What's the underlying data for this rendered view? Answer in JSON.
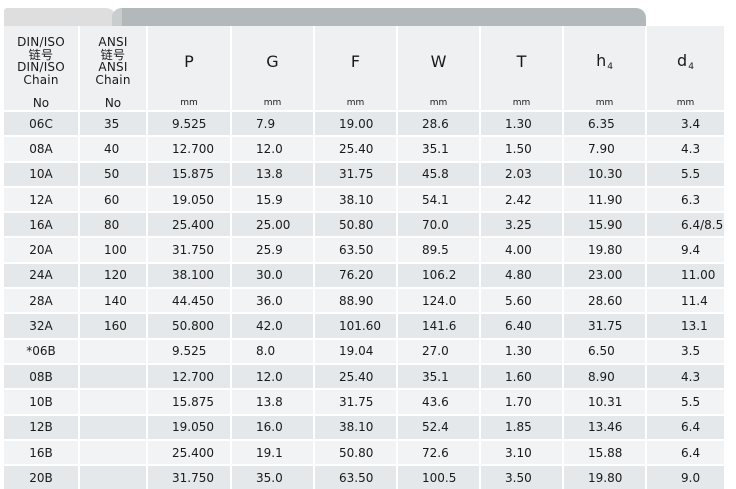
{
  "header": {
    "din_lines": [
      "DIN/ISO",
      "链号",
      "DIN/ISO",
      "Chain",
      "No"
    ],
    "ansi_lines": [
      "ANSI",
      "链号",
      "ANSI",
      "Chain",
      "No"
    ],
    "dims": [
      {
        "sym": "P",
        "sub": ""
      },
      {
        "sym": "G",
        "sub": ""
      },
      {
        "sym": "F",
        "sub": ""
      },
      {
        "sym": "W",
        "sub": ""
      },
      {
        "sym": "T",
        "sub": ""
      },
      {
        "sym": "h",
        "sub": "4"
      },
      {
        "sym": "d",
        "sub": "4"
      }
    ],
    "unit": "mm"
  },
  "rows": [
    [
      "06C",
      "35",
      "9.525",
      "7.9",
      "19.00",
      "28.6",
      "1.30",
      "6.35",
      "3.4"
    ],
    [
      "08A",
      "40",
      "12.700",
      "12.0",
      "25.40",
      "35.1",
      "1.50",
      "7.90",
      "4.3"
    ],
    [
      "10A",
      "50",
      "15.875",
      "13.8",
      "31.75",
      "45.8",
      "2.03",
      "10.30",
      "5.5"
    ],
    [
      "12A",
      "60",
      "19.050",
      "15.9",
      "38.10",
      "54.1",
      "2.42",
      "11.90",
      "6.3"
    ],
    [
      "16A",
      "80",
      "25.400",
      "25.00",
      "50.80",
      "70.0",
      "3.25",
      "15.90",
      "6.4/8.5"
    ],
    [
      "20A",
      "100",
      "31.750",
      "25.9",
      "63.50",
      "89.5",
      "4.00",
      "19.80",
      "9.4"
    ],
    [
      "24A",
      "120",
      "38.100",
      "30.0",
      "76.20",
      "106.2",
      "4.80",
      "23.00",
      "11.00"
    ],
    [
      "28A",
      "140",
      "44.450",
      "36.0",
      "88.90",
      "124.0",
      "5.60",
      "28.60",
      "11.4"
    ],
    [
      "32A",
      "160",
      "50.800",
      "42.0",
      "101.60",
      "141.6",
      "6.40",
      "31.75",
      "13.1"
    ],
    [
      "*06B",
      "",
      "9.525",
      "8.0",
      "19.04",
      "27.0",
      "1.30",
      "6.50",
      "3.5"
    ],
    [
      "08B",
      "",
      "12.700",
      "12.0",
      "25.40",
      "35.1",
      "1.60",
      "8.90",
      "4.3"
    ],
    [
      "10B",
      "",
      "15.875",
      "13.8",
      "31.75",
      "43.6",
      "1.70",
      "10.31",
      "5.5"
    ],
    [
      "12B",
      "",
      "19.050",
      "16.0",
      "38.10",
      "52.4",
      "1.85",
      "13.46",
      "6.4"
    ],
    [
      "16B",
      "",
      "25.400",
      "19.1",
      "50.80",
      "72.6",
      "3.10",
      "15.88",
      "6.4"
    ],
    [
      "20B",
      "",
      "31.750",
      "35.0",
      "63.50",
      "100.5",
      "3.50",
      "19.80",
      "9.0"
    ]
  ]
}
